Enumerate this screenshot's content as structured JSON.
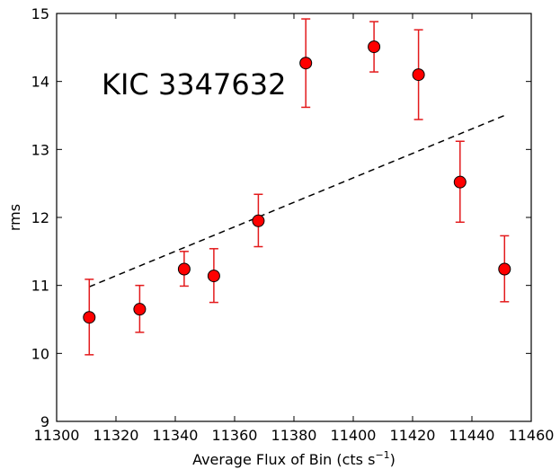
{
  "chart_data": {
    "type": "scatter",
    "annotation": "KIC 3347632",
    "xlabel": "Average Flux of Bin (cts s",
    "xlabel_sup": "−1",
    "xlabel_end": ")",
    "ylabel": "rms",
    "xlim": [
      11300,
      11460
    ],
    "ylim": [
      9,
      15
    ],
    "xticks": [
      11300,
      11320,
      11340,
      11360,
      11380,
      11400,
      11420,
      11440,
      11460
    ],
    "yticks": [
      9,
      10,
      11,
      12,
      13,
      14,
      15
    ],
    "grid": false,
    "colors": {
      "marker": "#ff0000",
      "errorbar": "#e31a1c",
      "fit": "#000000"
    },
    "points": [
      {
        "x": 11311,
        "y": 10.53,
        "yerr_low": 9.98,
        "yerr_high": 11.09
      },
      {
        "x": 11328,
        "y": 10.65,
        "yerr_low": 10.31,
        "yerr_high": 11.0
      },
      {
        "x": 11343,
        "y": 11.24,
        "yerr_low": 10.99,
        "yerr_high": 11.5
      },
      {
        "x": 11353,
        "y": 11.14,
        "yerr_low": 10.75,
        "yerr_high": 11.54
      },
      {
        "x": 11368,
        "y": 11.95,
        "yerr_low": 11.57,
        "yerr_high": 12.34
      },
      {
        "x": 11384,
        "y": 14.27,
        "yerr_low": 13.62,
        "yerr_high": 14.92
      },
      {
        "x": 11407,
        "y": 14.51,
        "yerr_low": 14.14,
        "yerr_high": 14.88
      },
      {
        "x": 11422,
        "y": 14.1,
        "yerr_low": 13.44,
        "yerr_high": 14.76
      },
      {
        "x": 11436,
        "y": 12.52,
        "yerr_low": 11.93,
        "yerr_high": 13.12
      },
      {
        "x": 11451,
        "y": 11.24,
        "yerr_low": 10.76,
        "yerr_high": 11.73
      }
    ],
    "fit_line": {
      "x": [
        11311,
        11451
      ],
      "y": [
        10.98,
        13.5
      ]
    }
  }
}
